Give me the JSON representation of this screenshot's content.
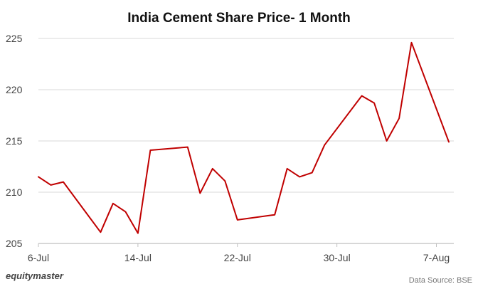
{
  "brand": "equitymaster",
  "source": "Data Source: BSE",
  "colors": {
    "line": "#c00000",
    "grid": "#d9d9d9",
    "axis": "#bfbfbf",
    "text": "#444444",
    "title": "#111111"
  },
  "chart_data": {
    "type": "line",
    "title": "India Cement Share Price- 1 Month",
    "xlabel": "",
    "ylabel": "",
    "x": [
      "6-Jul",
      "7-Jul",
      "8-Jul",
      "11-Jul",
      "12-Jul",
      "13-Jul",
      "14-Jul",
      "15-Jul",
      "18-Jul",
      "19-Jul",
      "20-Jul",
      "21-Jul",
      "22-Jul",
      "25-Jul",
      "26-Jul",
      "27-Jul",
      "28-Jul",
      "29-Jul",
      "1-Aug",
      "2-Aug",
      "3-Aug",
      "4-Aug",
      "5-Aug",
      "8-Aug"
    ],
    "x_index": [
      0,
      1,
      2,
      5,
      6,
      7,
      8,
      9,
      12,
      13,
      14,
      15,
      16,
      19,
      20,
      21,
      22,
      23,
      26,
      27,
      28,
      29,
      30,
      33
    ],
    "values": [
      211.5,
      210.7,
      211.0,
      206.1,
      208.9,
      208.1,
      206.0,
      214.1,
      214.4,
      209.9,
      212.3,
      211.1,
      207.3,
      207.8,
      212.3,
      211.5,
      211.9,
      214.6,
      219.4,
      218.7,
      215.0,
      217.2,
      224.6,
      214.9
    ],
    "x_ticks": [
      {
        "label": "6-Jul",
        "index": 0
      },
      {
        "label": "14-Jul",
        "index": 8
      },
      {
        "label": "22-Jul",
        "index": 16
      },
      {
        "label": "30-Jul",
        "index": 24
      },
      {
        "label": "7-Aug",
        "index": 32
      }
    ],
    "y_ticks": [
      205,
      210,
      215,
      220,
      225
    ],
    "ylim": [
      205,
      225
    ],
    "xlim": [
      0,
      33
    ],
    "grid": true,
    "legend": "none"
  }
}
